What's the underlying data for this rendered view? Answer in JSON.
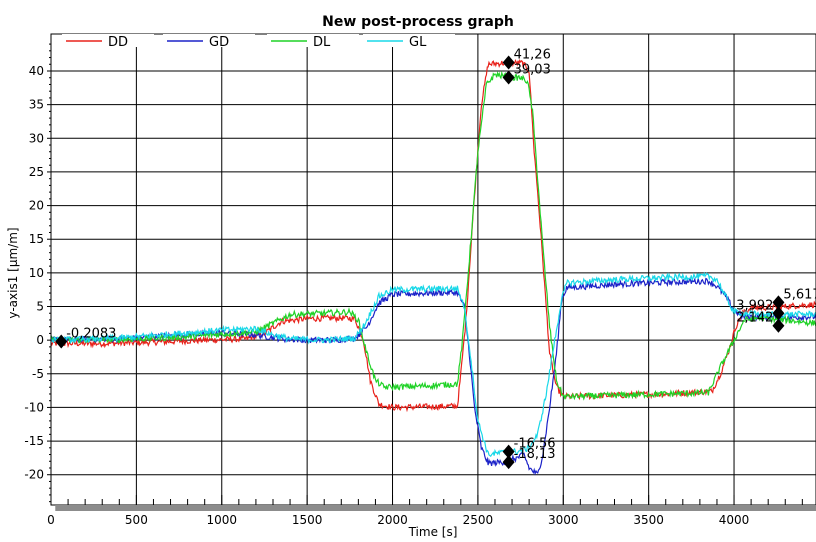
{
  "chart_data": {
    "type": "line",
    "title": "New post-process graph",
    "xlabel": "Time [s]",
    "ylabel": "y-axis1 [µm/m]",
    "xlim": [
      0,
      4480
    ],
    "ylim": [
      -24.5,
      45.5
    ],
    "x_ticks": [
      0,
      500,
      1000,
      1500,
      2000,
      2500,
      3000,
      3500,
      4000
    ],
    "y_ticks": [
      -20,
      -15,
      -10,
      -5,
      0,
      5,
      10,
      15,
      20,
      25,
      30,
      35,
      40
    ],
    "grid": true,
    "legend_position": "top-left",
    "series": [
      {
        "name": "DD",
        "color": "#e8221b",
        "points": [
          [
            0,
            -0.5
          ],
          [
            300,
            -0.5
          ],
          [
            600,
            -0.3
          ],
          [
            900,
            0
          ],
          [
            1150,
            0.2
          ],
          [
            1250,
            1
          ],
          [
            1350,
            2.8
          ],
          [
            1500,
            3.2
          ],
          [
            1700,
            3.3
          ],
          [
            1780,
            3.2
          ],
          [
            1830,
            0
          ],
          [
            1870,
            -6
          ],
          [
            1920,
            -9.5
          ],
          [
            2000,
            -10
          ],
          [
            2200,
            -9.9
          ],
          [
            2380,
            -9.8
          ],
          [
            2400,
            -5
          ],
          [
            2430,
            3
          ],
          [
            2470,
            18
          ],
          [
            2520,
            35
          ],
          [
            2560,
            41
          ],
          [
            2650,
            41.2
          ],
          [
            2760,
            41.2
          ],
          [
            2800,
            40
          ],
          [
            2830,
            28
          ],
          [
            2850,
            22
          ],
          [
            2880,
            12
          ],
          [
            2920,
            -2
          ],
          [
            2960,
            -7
          ],
          [
            3000,
            -8.4
          ],
          [
            3300,
            -8.2
          ],
          [
            3600,
            -8
          ],
          [
            3870,
            -7.6
          ],
          [
            3920,
            -5
          ],
          [
            3970,
            -1.5
          ],
          [
            4010,
            2
          ],
          [
            4050,
            4
          ],
          [
            4100,
            4.8
          ],
          [
            4250,
            4.9
          ],
          [
            4350,
            5.1
          ],
          [
            4480,
            5.3
          ]
        ]
      },
      {
        "name": "GD",
        "color": "#1b22c8",
        "points": [
          [
            0,
            0
          ],
          [
            400,
            0.2
          ],
          [
            800,
            0.8
          ],
          [
            1000,
            1.1
          ],
          [
            1200,
            0.8
          ],
          [
            1350,
            0.2
          ],
          [
            1500,
            0
          ],
          [
            1650,
            0
          ],
          [
            1780,
            0.3
          ],
          [
            1850,
            2
          ],
          [
            1920,
            5.5
          ],
          [
            2000,
            6.8
          ],
          [
            2200,
            7
          ],
          [
            2380,
            7.1
          ],
          [
            2420,
            5
          ],
          [
            2450,
            -2
          ],
          [
            2480,
            -10
          ],
          [
            2520,
            -16
          ],
          [
            2560,
            -18.3
          ],
          [
            2650,
            -18.1
          ],
          [
            2730,
            -17.5
          ],
          [
            2770,
            -17
          ],
          [
            2800,
            -19
          ],
          [
            2850,
            -20
          ],
          [
            2880,
            -17
          ],
          [
            2920,
            -10
          ],
          [
            2960,
            -2
          ],
          [
            2990,
            6
          ],
          [
            3020,
            7.8
          ],
          [
            3300,
            8.3
          ],
          [
            3600,
            8.6
          ],
          [
            3850,
            8.8
          ],
          [
            3900,
            8
          ],
          [
            3950,
            6.5
          ],
          [
            4000,
            4.5
          ],
          [
            4050,
            3.5
          ],
          [
            4200,
            3.4
          ],
          [
            4350,
            3.4
          ],
          [
            4480,
            3.5
          ]
        ]
      },
      {
        "name": "DL",
        "color": "#1fd226",
        "points": [
          [
            0,
            0
          ],
          [
            400,
            0.1
          ],
          [
            800,
            0.5
          ],
          [
            1000,
            0.9
          ],
          [
            1200,
            1.2
          ],
          [
            1300,
            2.5
          ],
          [
            1400,
            3.8
          ],
          [
            1600,
            4
          ],
          [
            1750,
            4.2
          ],
          [
            1800,
            3
          ],
          [
            1850,
            -2
          ],
          [
            1900,
            -6
          ],
          [
            1950,
            -7
          ],
          [
            2200,
            -6.8
          ],
          [
            2380,
            -6.5
          ],
          [
            2410,
            0
          ],
          [
            2450,
            12
          ],
          [
            2500,
            28
          ],
          [
            2550,
            38
          ],
          [
            2600,
            39.5
          ],
          [
            2700,
            39
          ],
          [
            2750,
            39
          ],
          [
            2790,
            38.5
          ],
          [
            2820,
            34
          ],
          [
            2850,
            24
          ],
          [
            2880,
            14
          ],
          [
            2920,
            2
          ],
          [
            2960,
            -6
          ],
          [
            3000,
            -8.4
          ],
          [
            3300,
            -8.2
          ],
          [
            3600,
            -8
          ],
          [
            3850,
            -7.8
          ],
          [
            3920,
            -4
          ],
          [
            3980,
            -1
          ],
          [
            4020,
            1
          ],
          [
            4060,
            3
          ],
          [
            4150,
            3.3
          ],
          [
            4300,
            3
          ],
          [
            4480,
            2.5
          ]
        ]
      },
      {
        "name": "GL",
        "color": "#18d8e8",
        "points": [
          [
            0,
            0
          ],
          [
            400,
            0.3
          ],
          [
            800,
            1.1
          ],
          [
            1000,
            1.5
          ],
          [
            1200,
            1.7
          ],
          [
            1300,
            0.8
          ],
          [
            1400,
            0.2
          ],
          [
            1600,
            0
          ],
          [
            1780,
            0.3
          ],
          [
            1840,
            2.5
          ],
          [
            1920,
            6.5
          ],
          [
            2000,
            7.5
          ],
          [
            2200,
            7.6
          ],
          [
            2380,
            7.7
          ],
          [
            2420,
            5
          ],
          [
            2460,
            -3
          ],
          [
            2500,
            -12
          ],
          [
            2560,
            -17
          ],
          [
            2650,
            -16.7
          ],
          [
            2750,
            -16.5
          ],
          [
            2800,
            -16
          ],
          [
            2850,
            -14
          ],
          [
            2900,
            -8
          ],
          [
            2950,
            0
          ],
          [
            2990,
            6
          ],
          [
            3020,
            8.5
          ],
          [
            3300,
            9
          ],
          [
            3600,
            9.3
          ],
          [
            3850,
            9.5
          ],
          [
            3900,
            9
          ],
          [
            3960,
            6
          ],
          [
            4000,
            4.2
          ],
          [
            4100,
            3.9
          ],
          [
            4300,
            3.8
          ],
          [
            4480,
            3.9
          ]
        ]
      }
    ],
    "annotations": [
      {
        "text": "41,26",
        "x": 2680,
        "y": 41.26,
        "side": "right"
      },
      {
        "text": "39,03",
        "x": 2680,
        "y": 39.03,
        "side": "right"
      },
      {
        "text": "-16,56",
        "x": 2680,
        "y": -16.56,
        "side": "right"
      },
      {
        "text": "-18,13",
        "x": 2680,
        "y": -18.13,
        "side": "right"
      },
      {
        "text": "-0,2083",
        "x": 60,
        "y": -0.2083,
        "side": "right"
      },
      {
        "text": "5,617",
        "x": 4260,
        "y": 5.617,
        "side": "right"
      },
      {
        "text": "3,992",
        "x": 4260,
        "y": 3.992,
        "side": "left"
      },
      {
        "text": "2,142",
        "x": 4260,
        "y": 2.142,
        "side": "left"
      }
    ]
  }
}
